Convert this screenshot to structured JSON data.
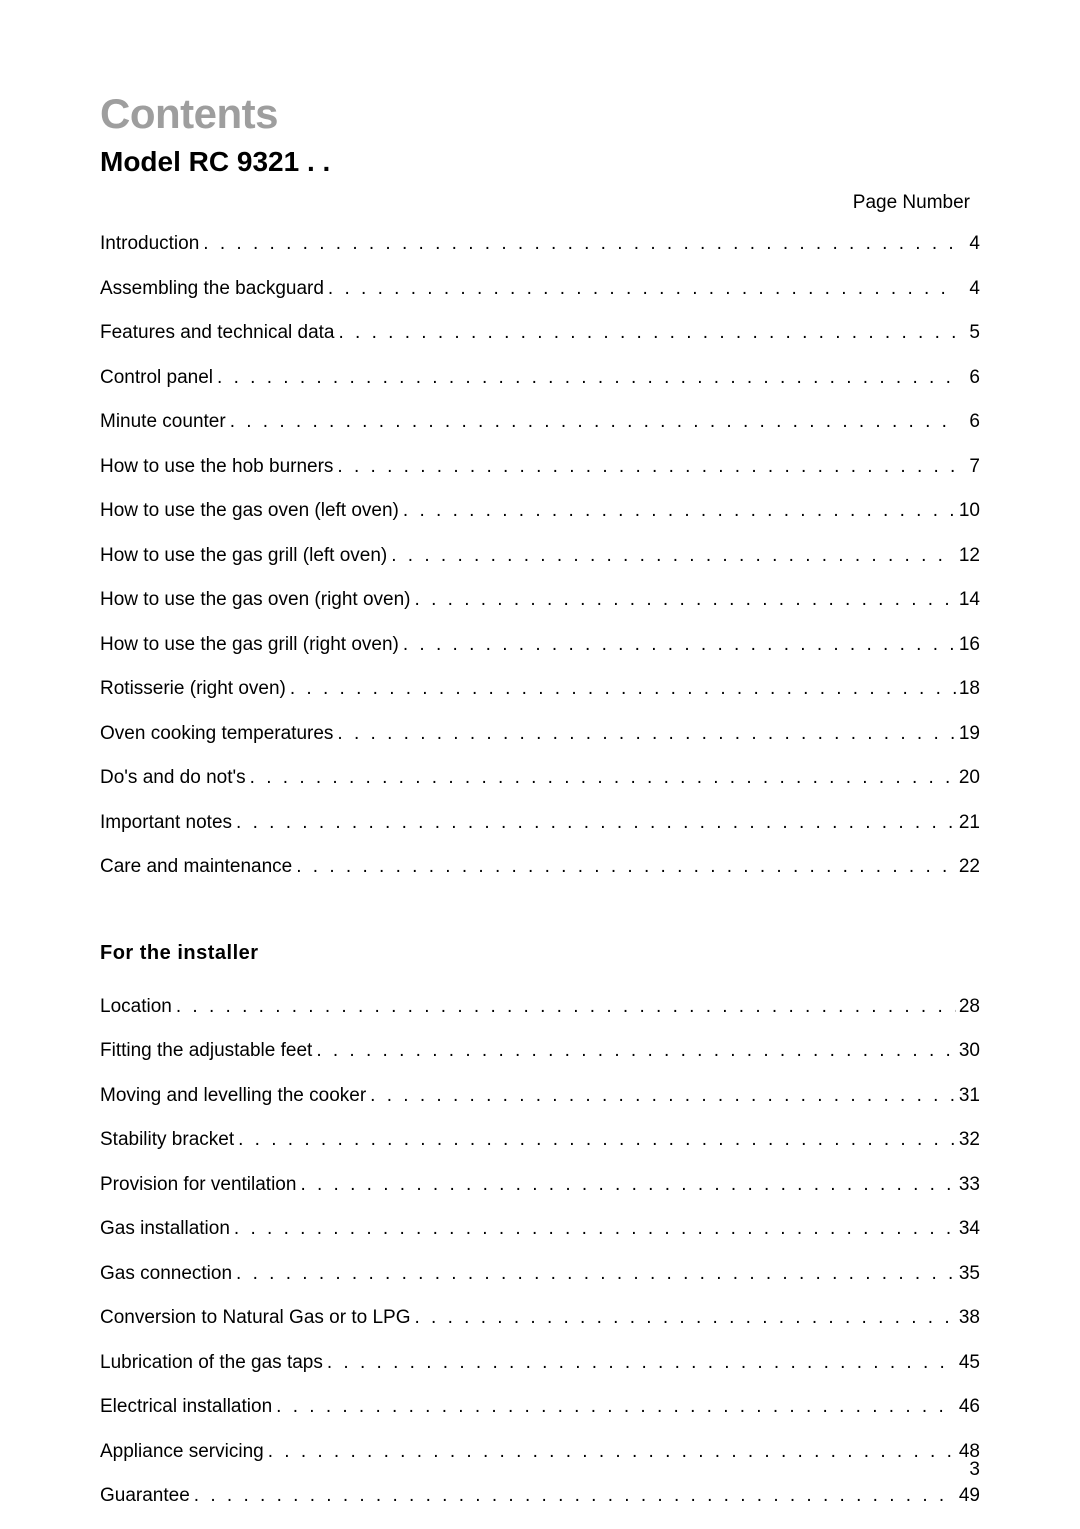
{
  "title": "Contents",
  "model": "Model RC 9321 . .",
  "page_number_label": "Page Number",
  "footer_page": "3",
  "colors": {
    "title_gray": "#9e9e9e",
    "text_black": "#000000",
    "background": "#ffffff"
  },
  "typography": {
    "title_fontsize": 42,
    "model_fontsize": 28,
    "body_fontsize": 19,
    "heading_fontsize": 20
  },
  "sections": [
    {
      "heading": null,
      "items": [
        {
          "label": "Introduction",
          "page": "4"
        },
        {
          "label": "Assembling the backguard",
          "page": "4"
        },
        {
          "label": "Features and technical data",
          "page": "5"
        },
        {
          "label": "Control panel",
          "page": "6"
        },
        {
          "label": "Minute counter",
          "page": "6"
        },
        {
          "label": "How to use the hob burners",
          "page": "7"
        },
        {
          "label": "How to use the gas oven (left oven)",
          "page": "10"
        },
        {
          "label": "How to use the gas grill (left oven)",
          "page": "12"
        },
        {
          "label": "How to use the gas oven (right oven)",
          "page": "14"
        },
        {
          "label": "How to use the gas grill (right oven)",
          "page": "16"
        },
        {
          "label": "Rotisserie (right oven)",
          "page": "18"
        },
        {
          "label": "Oven cooking temperatures",
          "page": "19"
        },
        {
          "label": "Do's and do not's",
          "page": "20"
        },
        {
          "label": "Important notes",
          "page": "21"
        },
        {
          "label": "Care and maintenance",
          "page": "22"
        }
      ]
    },
    {
      "heading": "For the installer",
      "items": [
        {
          "label": "Location",
          "page": "28"
        },
        {
          "label": "Fitting the adjustable feet",
          "page": "30"
        },
        {
          "label": "Moving and levelling the cooker",
          "page": "31"
        },
        {
          "label": "Stability bracket",
          "page": "32"
        },
        {
          "label": "Provision for ventilation",
          "page": "33"
        },
        {
          "label": "Gas installation",
          "page": "34"
        },
        {
          "label": "Gas connection",
          "page": "35"
        },
        {
          "label": "Conversion to Natural Gas or to LPG",
          "page": "38"
        },
        {
          "label": "Lubrication of the gas taps",
          "page": "45"
        },
        {
          "label": "Electrical installation",
          "page": "46"
        },
        {
          "label": "Appliance servicing",
          "page": "48"
        },
        {
          "label": "Guarantee",
          "page": "49"
        }
      ]
    }
  ]
}
